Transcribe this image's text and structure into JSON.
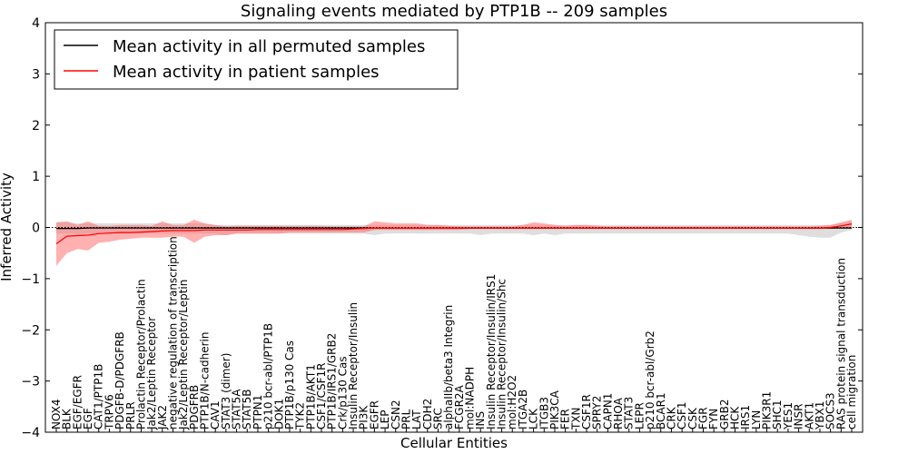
{
  "chart_data": {
    "type": "line",
    "title": "Signaling events mediated by PTP1B -- 209 samples",
    "xlabel": "Cellular Entities",
    "ylabel": "Inferred Activity",
    "ylim": [
      -4,
      4
    ],
    "yticks": [
      -4,
      -3,
      -2,
      -1,
      0,
      1,
      2,
      3,
      4
    ],
    "grid": false,
    "legend_position": "top-left",
    "colors": {
      "permuted": "#000000",
      "patient": "#ff0000",
      "permuted_band": "#c8c8c8",
      "patient_band": "#ff7070"
    },
    "legend": [
      {
        "key": "permuted",
        "label": "Mean activity in all permuted samples"
      },
      {
        "key": "patient",
        "label": "Mean activity in patient samples"
      }
    ],
    "categories": [
      "NOX4",
      "BLK",
      "EGF/EGFR",
      "EGF",
      "CAT1/PTP1B",
      "TRPV6",
      "PDGFB-D/PDGFRB",
      "PRLR",
      "Prolactin Receptor/Prolactin",
      "Jak2/Leptin Receptor",
      "JAK2",
      "negative regulation of transcription",
      "Jak2/Leptin Receptor/Leptin",
      "PDGFRB",
      "PTP1B/N-cadherin",
      "CAV1",
      "STAT3 (dimer)",
      "STAT5A",
      "STAT5B",
      "PTPN1",
      "p210 bcr-abl/PTP1B",
      "DOK1",
      "PTP1B/p130 Cas",
      "TYK2",
      "PTP1B/AKT1",
      "CSF1/CSF1R",
      "PTP1B/IRS1/GRB2",
      "Crk/p130 Cas",
      "Insulin Receptor/Insulin",
      "PI3K",
      "EGFR",
      "LEP",
      "CSN2",
      "PRL",
      "LAT",
      "CDH2",
      "SRC",
      "alphaIIb/beta3 Integrin",
      "FCGR2A",
      "mol:NADPH",
      "INS",
      "Insulin Receptor/Insulin/IRS1",
      "Insulin Receptor/Insulin/Shc",
      "mol:H2O2",
      "ITGA2B",
      "LCK",
      "ITGB3",
      "PIK3CA",
      "FER",
      "TXN",
      "CSF1R",
      "SPRY2",
      "CAPN1",
      "RHOA",
      "STAT3",
      "LEPR",
      "p210 bcr-abl/Grb2",
      "BCAR1",
      "CRK",
      "CSF1",
      "CSK",
      "FGR",
      "FYN",
      "GRB2",
      "HCK",
      "IRS1",
      "LYN",
      "PIK3R1",
      "SHC1",
      "YES1",
      "INSR",
      "AKT1",
      "YBX1",
      "SOCS3",
      "RAS protein signal transduction",
      "cell migration"
    ],
    "series": [
      {
        "name": "Mean activity in all permuted samples",
        "key": "permuted",
        "values": [
          -0.02,
          -0.02,
          -0.02,
          -0.01,
          -0.01,
          -0.01,
          -0.01,
          -0.01,
          -0.01,
          -0.01,
          -0.01,
          -0.01,
          -0.01,
          -0.01,
          -0.01,
          -0.01,
          -0.01,
          -0.01,
          -0.01,
          -0.01,
          -0.01,
          -0.01,
          -0.01,
          -0.01,
          -0.01,
          -0.01,
          -0.01,
          -0.01,
          -0.01,
          -0.01,
          -0.01,
          -0.01,
          -0.01,
          -0.01,
          -0.01,
          -0.01,
          -0.01,
          -0.01,
          -0.01,
          -0.01,
          -0.01,
          -0.01,
          -0.01,
          -0.01,
          -0.01,
          -0.01,
          -0.01,
          -0.01,
          -0.01,
          -0.01,
          -0.01,
          -0.01,
          -0.01,
          -0.01,
          -0.01,
          -0.01,
          -0.01,
          -0.01,
          -0.01,
          -0.01,
          -0.01,
          -0.01,
          -0.01,
          -0.01,
          -0.01,
          -0.01,
          -0.01,
          -0.01,
          -0.01,
          -0.01,
          -0.01,
          -0.01,
          -0.01,
          -0.01,
          -0.01,
          -0.01
        ],
        "band_low": [
          -0.12,
          -0.12,
          -0.12,
          -0.12,
          -0.12,
          -0.12,
          -0.12,
          -0.12,
          -0.12,
          -0.12,
          -0.12,
          -0.12,
          -0.12,
          -0.12,
          -0.12,
          -0.12,
          -0.15,
          -0.12,
          -0.12,
          -0.12,
          -0.12,
          -0.12,
          -0.12,
          -0.12,
          -0.12,
          -0.12,
          -0.12,
          -0.12,
          -0.12,
          -0.12,
          -0.15,
          -0.12,
          -0.12,
          -0.12,
          -0.12,
          -0.12,
          -0.12,
          -0.12,
          -0.12,
          -0.12,
          -0.15,
          -0.12,
          -0.12,
          -0.12,
          -0.12,
          -0.15,
          -0.12,
          -0.15,
          -0.12,
          -0.12,
          -0.12,
          -0.12,
          -0.12,
          -0.12,
          -0.12,
          -0.12,
          -0.12,
          -0.12,
          -0.12,
          -0.12,
          -0.12,
          -0.12,
          -0.12,
          -0.12,
          -0.12,
          -0.12,
          -0.12,
          -0.12,
          -0.12,
          -0.12,
          -0.15,
          -0.18,
          -0.2,
          -0.2,
          -0.1,
          -0.05
        ],
        "band_high": [
          0.1,
          0.1,
          0.08,
          0.08,
          0.08,
          0.08,
          0.08,
          0.08,
          0.08,
          0.08,
          0.08,
          0.08,
          0.08,
          0.08,
          0.08,
          0.05,
          0.05,
          0.05,
          0.05,
          0.05,
          0.05,
          0.05,
          0.05,
          0.05,
          0.05,
          0.05,
          0.05,
          0.05,
          0.05,
          0.05,
          0.05,
          0.05,
          0.05,
          0.05,
          0.05,
          0.05,
          0.05,
          0.05,
          0.05,
          0.05,
          0.05,
          0.05,
          0.05,
          0.05,
          0.05,
          0.05,
          0.05,
          0.05,
          0.05,
          0.05,
          0.05,
          0.05,
          0.05,
          0.05,
          0.05,
          0.05,
          0.05,
          0.05,
          0.05,
          0.05,
          0.05,
          0.05,
          0.05,
          0.05,
          0.05,
          0.05,
          0.05,
          0.05,
          0.05,
          0.05,
          0.05,
          0.05,
          0.05,
          0.05,
          0.08,
          0.12
        ]
      },
      {
        "name": "Mean activity in patient samples",
        "key": "patient",
        "values": [
          -0.32,
          -0.17,
          -0.16,
          -0.15,
          -0.12,
          -0.11,
          -0.1,
          -0.1,
          -0.09,
          -0.08,
          -0.07,
          -0.06,
          -0.06,
          -0.06,
          -0.05,
          -0.05,
          -0.05,
          -0.05,
          -0.05,
          -0.04,
          -0.04,
          -0.04,
          -0.04,
          -0.04,
          -0.04,
          -0.04,
          -0.04,
          -0.04,
          -0.03,
          -0.02,
          -0.01,
          -0.01,
          -0.01,
          -0.01,
          -0.01,
          -0.01,
          -0.01,
          -0.01,
          -0.01,
          -0.01,
          -0.01,
          -0.01,
          -0.01,
          -0.01,
          -0.01,
          -0.01,
          -0.01,
          -0.01,
          -0.01,
          -0.01,
          -0.01,
          -0.01,
          -0.01,
          -0.01,
          -0.01,
          -0.01,
          -0.01,
          -0.01,
          -0.01,
          -0.01,
          -0.01,
          -0.01,
          -0.01,
          -0.01,
          -0.01,
          -0.01,
          -0.01,
          -0.01,
          -0.01,
          -0.01,
          -0.01,
          -0.01,
          -0.01,
          0.0,
          0.03,
          0.07
        ],
        "band_low": [
          -0.75,
          -0.5,
          -0.42,
          -0.45,
          -0.3,
          -0.28,
          -0.24,
          -0.22,
          -0.2,
          -0.2,
          -0.2,
          -0.18,
          -0.18,
          -0.3,
          -0.18,
          -0.15,
          -0.15,
          -0.12,
          -0.12,
          -0.12,
          -0.12,
          -0.12,
          -0.1,
          -0.1,
          -0.1,
          -0.1,
          -0.1,
          -0.1,
          -0.1,
          -0.1,
          -0.05,
          -0.05,
          -0.05,
          -0.05,
          -0.05,
          -0.05,
          -0.05,
          -0.05,
          -0.05,
          -0.03,
          -0.03,
          -0.03,
          -0.03,
          -0.03,
          -0.03,
          -0.03,
          -0.03,
          -0.03,
          -0.03,
          -0.03,
          -0.03,
          -0.03,
          -0.03,
          -0.03,
          -0.03,
          -0.03,
          -0.03,
          -0.03,
          -0.03,
          -0.03,
          -0.03,
          -0.03,
          -0.03,
          -0.03,
          -0.03,
          -0.03,
          -0.03,
          -0.03,
          -0.03,
          -0.03,
          -0.03,
          -0.03,
          -0.03,
          -0.03,
          -0.02,
          -0.02
        ],
        "band_high": [
          0.1,
          0.12,
          0.05,
          0.12,
          0.03,
          0.03,
          0.05,
          0.05,
          0.05,
          0.03,
          0.12,
          0.05,
          0.05,
          0.15,
          0.08,
          0.05,
          0.02,
          0.03,
          0.03,
          0.03,
          0.03,
          0.03,
          0.03,
          0.03,
          0.03,
          0.03,
          0.02,
          0.02,
          0.02,
          0.02,
          0.12,
          0.1,
          0.08,
          0.08,
          0.08,
          0.05,
          0.05,
          0.03,
          0.02,
          0.02,
          0.02,
          0.02,
          0.02,
          0.02,
          0.05,
          0.1,
          0.08,
          0.05,
          0.03,
          0.05,
          0.05,
          0.03,
          0.02,
          0.02,
          0.02,
          0.02,
          0.02,
          0.02,
          0.02,
          0.02,
          0.02,
          0.02,
          0.02,
          0.02,
          0.02,
          0.02,
          0.02,
          0.02,
          0.02,
          0.02,
          0.02,
          0.02,
          0.03,
          0.05,
          0.1,
          0.15
        ]
      }
    ]
  }
}
